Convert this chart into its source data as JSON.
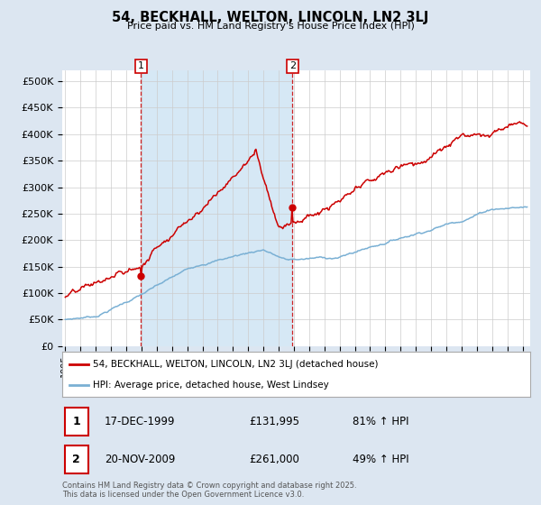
{
  "title": "54, BECKHALL, WELTON, LINCOLN, LN2 3LJ",
  "subtitle": "Price paid vs. HM Land Registry's House Price Index (HPI)",
  "ylabel_ticks": [
    "£0",
    "£50K",
    "£100K",
    "£150K",
    "£200K",
    "£250K",
    "£300K",
    "£350K",
    "£400K",
    "£450K",
    "£500K"
  ],
  "ytick_values": [
    0,
    50000,
    100000,
    150000,
    200000,
    250000,
    300000,
    350000,
    400000,
    450000,
    500000
  ],
  "ylim": [
    0,
    520000
  ],
  "xlim_start": 1994.8,
  "xlim_end": 2025.5,
  "bg_color": "#dce6f1",
  "plot_bg_color": "#ffffff",
  "red_color": "#cc0000",
  "blue_color": "#7ab0d4",
  "fill_color": "#d6e8f5",
  "marker1_x": 1999.96,
  "marker1_y": 131995,
  "marker2_x": 2009.9,
  "marker2_y": 261000,
  "vline1_x": 1999.96,
  "vline2_x": 2009.9,
  "legend_line1": "54, BECKHALL, WELTON, LINCOLN, LN2 3LJ (detached house)",
  "legend_line2": "HPI: Average price, detached house, West Lindsey",
  "table_row1": [
    "1",
    "17-DEC-1999",
    "£131,995",
    "81% ↑ HPI"
  ],
  "table_row2": [
    "2",
    "20-NOV-2009",
    "£261,000",
    "49% ↑ HPI"
  ],
  "footer": "Contains HM Land Registry data © Crown copyright and database right 2025.\nThis data is licensed under the Open Government Licence v3.0.",
  "xtick_years": [
    1995,
    1996,
    1997,
    1998,
    1999,
    2000,
    2001,
    2002,
    2003,
    2004,
    2005,
    2006,
    2007,
    2008,
    2009,
    2010,
    2011,
    2012,
    2013,
    2014,
    2015,
    2016,
    2017,
    2018,
    2019,
    2020,
    2021,
    2022,
    2023,
    2024,
    2025
  ]
}
